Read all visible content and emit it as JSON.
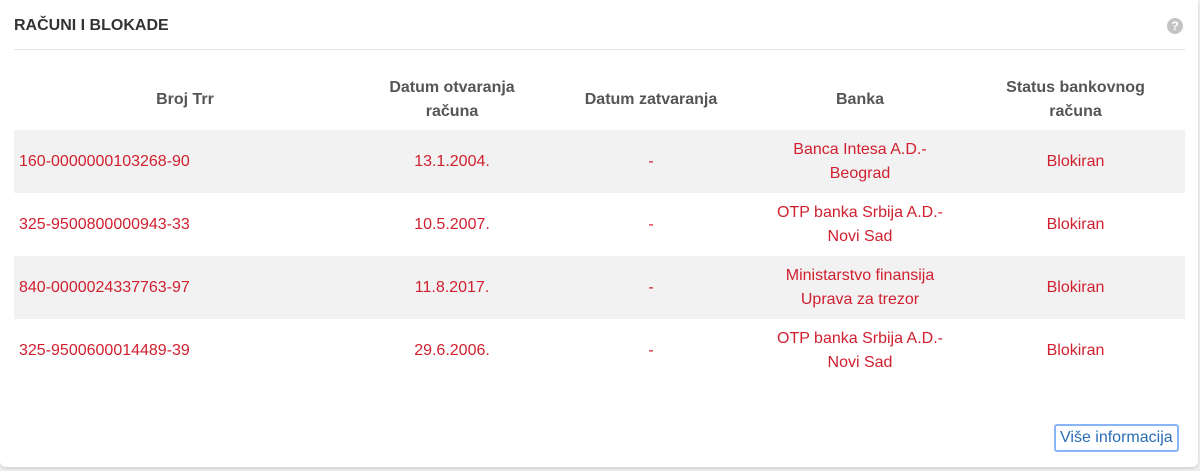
{
  "title": "RAČUNI I BLOKADE",
  "help_icon": "question-circle-icon",
  "table": {
    "headers": [
      "Broj Trr",
      "Datum otvaranja računa",
      "Datum zatvaranja",
      "Banka",
      "Status bankovnog računa"
    ],
    "rows": [
      {
        "trr": "160-0000000103268-90",
        "opened": "13.1.2004.",
        "closed": "-",
        "bank_line1": "Banca Intesa A.D.-",
        "bank_line2": "Beograd",
        "status": "Blokiran"
      },
      {
        "trr": "325-9500800000943-33",
        "opened": "10.5.2007.",
        "closed": "-",
        "bank_line1": "OTP banka Srbija A.D.-",
        "bank_line2": "Novi Sad",
        "status": "Blokiran"
      },
      {
        "trr": "840-0000024337763-97",
        "opened": "11.8.2017.",
        "closed": "-",
        "bank_line1": "Ministarstvo finansija",
        "bank_line2": "Uprava za trezor",
        "status": "Blokiran"
      },
      {
        "trr": "325-9500600014489-39",
        "opened": "29.6.2006.",
        "closed": "-",
        "bank_line1": "OTP banka Srbija A.D.-",
        "bank_line2": "Novi Sad",
        "status": "Blokiran"
      }
    ]
  },
  "more_button": "Više informacija",
  "colors": {
    "value_text": "#d0202f",
    "link": "#2a6db5",
    "focus_ring": "#8ab4f8"
  }
}
